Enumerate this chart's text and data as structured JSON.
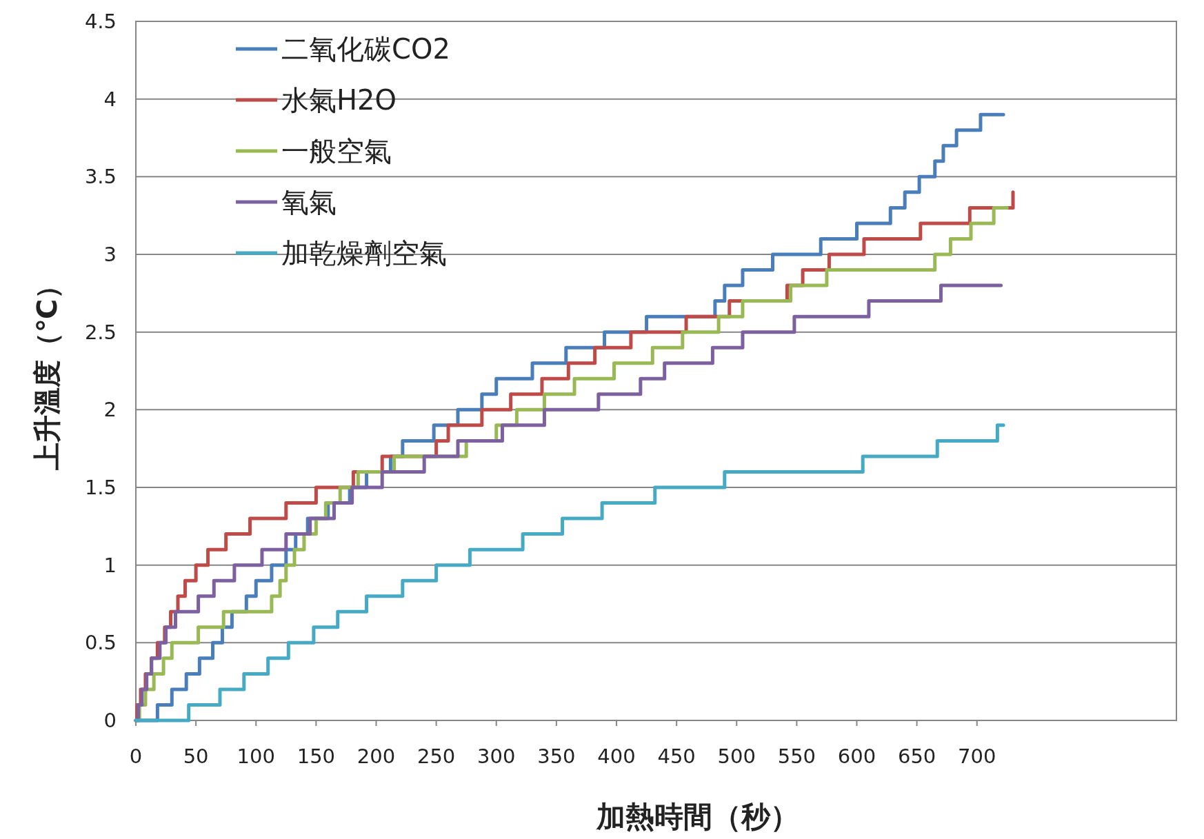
{
  "chart_data": {
    "type": "step",
    "xlabel": "加熱時間（秒）",
    "ylabel": "上升溫度（℃）",
    "xlim": [
      0,
      866
    ],
    "xticks": [
      0,
      50,
      100,
      150,
      200,
      250,
      300,
      350,
      400,
      450,
      500,
      550,
      600,
      650,
      700
    ],
    "ylim": [
      0,
      4.5
    ],
    "yticks": [
      0,
      0.5,
      1,
      1.5,
      2,
      2.5,
      3,
      3.5,
      4,
      4.5
    ],
    "grid": "y",
    "legend": "top left",
    "series": [
      {
        "name": "二氧化碳CO2",
        "color": "#4a7ebb",
        "x": [
          0,
          18,
          30,
          42,
          53,
          64,
          72,
          80,
          92,
          100,
          113,
          125,
          133,
          143,
          160,
          178,
          192,
          212,
          222,
          248,
          268,
          288,
          300,
          330,
          358,
          390,
          425,
          482,
          490,
          505,
          530,
          570,
          600,
          628,
          640,
          652,
          665,
          672,
          683,
          703,
          722
        ],
        "values": [
          0,
          0.1,
          0.2,
          0.3,
          0.4,
          0.5,
          0.6,
          0.7,
          0.8,
          0.9,
          1.0,
          1.1,
          1.2,
          1.3,
          1.4,
          1.5,
          1.6,
          1.7,
          1.8,
          1.9,
          2.0,
          2.1,
          2.2,
          2.3,
          2.4,
          2.5,
          2.6,
          2.7,
          2.8,
          2.9,
          3.0,
          3.1,
          3.2,
          3.3,
          3.4,
          3.5,
          3.6,
          3.7,
          3.8,
          3.9,
          3.9
        ]
      },
      {
        "name": "水氣H2O",
        "color": "#be4b48",
        "x": [
          0,
          1,
          4,
          8,
          13,
          18,
          24,
          29,
          35,
          41,
          50,
          60,
          75,
          95,
          125,
          150,
          181,
          205,
          250,
          260,
          288,
          312,
          338,
          360,
          382,
          412,
          458,
          494,
          542,
          555,
          577,
          606,
          653,
          694,
          730
        ],
        "values": [
          0,
          0.1,
          0.2,
          0.3,
          0.4,
          0.5,
          0.6,
          0.7,
          0.8,
          0.9,
          1.0,
          1.1,
          1.2,
          1.3,
          1.4,
          1.5,
          1.6,
          1.7,
          1.8,
          1.9,
          2.0,
          2.1,
          2.2,
          2.3,
          2.4,
          2.5,
          2.6,
          2.7,
          2.8,
          2.9,
          3.0,
          3.1,
          3.2,
          3.3,
          3.4
        ]
      },
      {
        "name": "一般空氣",
        "color": "#98b954",
        "x": [
          0,
          3,
          8,
          15,
          23,
          30,
          52,
          73,
          113,
          120,
          125,
          132,
          140,
          150,
          158,
          170,
          185,
          215,
          275,
          300,
          317,
          340,
          365,
          398,
          430,
          455,
          485,
          505,
          545,
          575,
          665,
          678,
          695,
          714,
          725
        ],
        "values": [
          0,
          0.1,
          0.2,
          0.3,
          0.4,
          0.5,
          0.6,
          0.7,
          0.8,
          0.9,
          1.0,
          1.1,
          1.2,
          1.3,
          1.4,
          1.5,
          1.6,
          1.7,
          1.8,
          1.9,
          2.0,
          2.1,
          2.2,
          2.3,
          2.4,
          2.5,
          2.6,
          2.7,
          2.8,
          2.9,
          3.0,
          3.1,
          3.2,
          3.3,
          3.3
        ]
      },
      {
        "name": "氧氣",
        "color": "#7d60a0",
        "x": [
          0,
          2,
          5,
          9,
          13,
          20,
          25,
          33,
          52,
          65,
          82,
          105,
          125,
          145,
          165,
          180,
          205,
          240,
          268,
          305,
          340,
          385,
          420,
          440,
          480,
          505,
          548,
          610,
          670,
          720
        ],
        "values": [
          0,
          0.1,
          0.2,
          0.3,
          0.4,
          0.5,
          0.6,
          0.7,
          0.8,
          0.9,
          1.0,
          1.1,
          1.2,
          1.3,
          1.4,
          1.5,
          1.6,
          1.7,
          1.8,
          1.9,
          2.0,
          2.1,
          2.2,
          2.3,
          2.4,
          2.5,
          2.6,
          2.7,
          2.8,
          2.8
        ]
      },
      {
        "name": "加乾燥劑空氣",
        "color": "#46aac5",
        "x": [
          0,
          44,
          70,
          90,
          110,
          127,
          148,
          168,
          192,
          222,
          250,
          278,
          322,
          355,
          388,
          432,
          490,
          605,
          667,
          717,
          722
        ],
        "values": [
          0,
          0.1,
          0.2,
          0.3,
          0.4,
          0.5,
          0.6,
          0.7,
          0.8,
          0.9,
          1.0,
          1.1,
          1.2,
          1.3,
          1.4,
          1.5,
          1.6,
          1.7,
          1.8,
          1.9,
          1.9
        ]
      }
    ]
  }
}
